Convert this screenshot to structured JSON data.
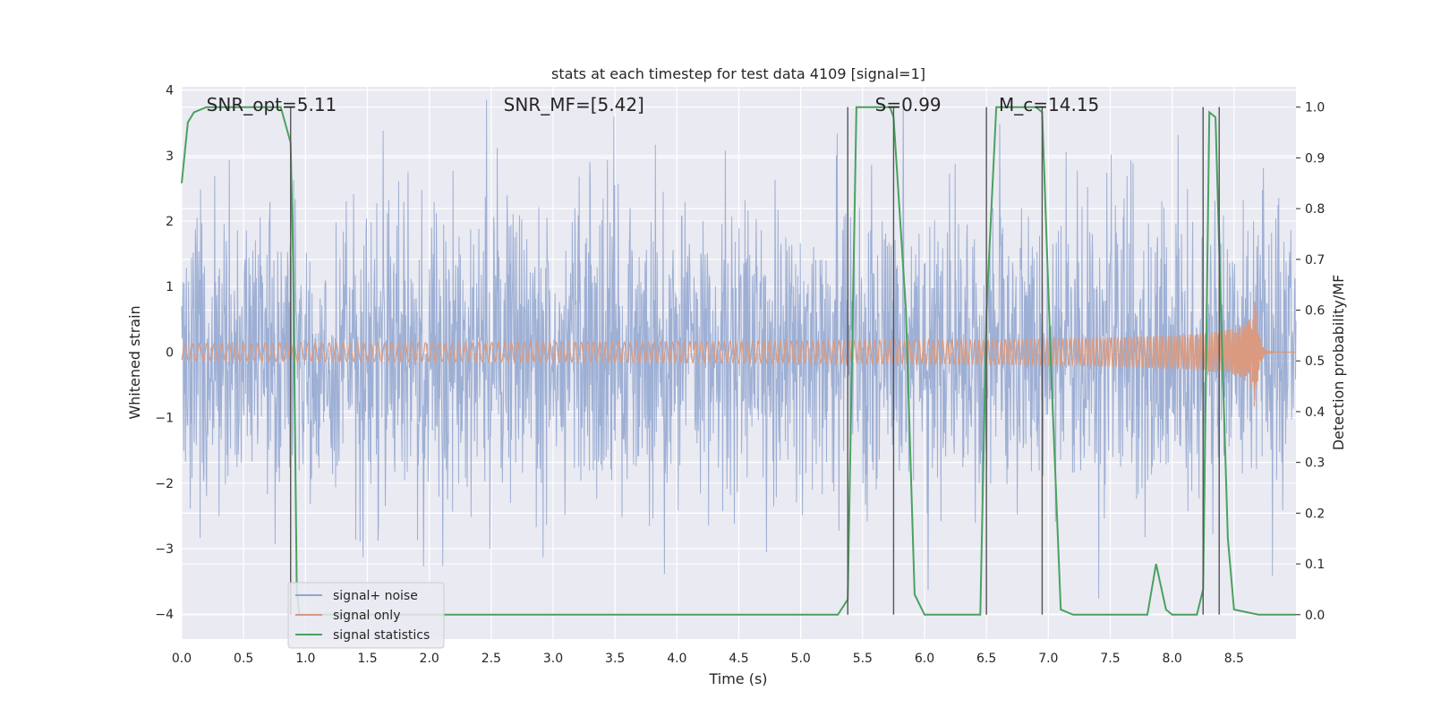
{
  "chart_data": {
    "type": "line",
    "title": "stats at each timestep for test data 4109 [signal=1]",
    "xlabel": "Time (s)",
    "ylabel_left": "Whitened strain",
    "ylabel_right": "Detection probability/MF",
    "xlim": [
      0.0,
      9.0
    ],
    "ylim_left": [
      -4.38,
      4.05
    ],
    "ylim_right": [
      -0.048,
      1.04
    ],
    "xticks": [
      "0.0",
      "0.5",
      "1.0",
      "1.5",
      "2.0",
      "2.5",
      "3.0",
      "3.5",
      "4.0",
      "4.5",
      "5.0",
      "5.5",
      "6.0",
      "6.5",
      "7.0",
      "7.5",
      "8.0",
      "8.5"
    ],
    "yticks_left": [
      "4",
      "3",
      "2",
      "1",
      "0",
      "−1",
      "−2",
      "−3",
      "−4"
    ],
    "yticks_right": [
      "1.0",
      "0.9",
      "0.8",
      "0.7",
      "0.6",
      "0.5",
      "0.4",
      "0.3",
      "0.2",
      "0.1",
      "0.0"
    ],
    "grid": true,
    "legend_position": "lower-left",
    "annotations": [
      {
        "text": "SNR_opt=5.11",
        "x": 0.2
      },
      {
        "text": "SNR_MF=[5.42]",
        "x": 2.6
      },
      {
        "text": "S=0.99",
        "x": 5.6
      },
      {
        "text": "M_c=14.15",
        "x": 6.6
      }
    ],
    "series": [
      {
        "name": "signal+ noise",
        "color": "#8fa5cf",
        "description_kind": "noise",
        "std": 1.15,
        "x_range": [
          0.0,
          9.0
        ]
      },
      {
        "name": "signal only",
        "color": "#d99a80",
        "description_kind": "chirp",
        "merger_time": 8.67,
        "peak_amplitude": 0.93,
        "x_range": [
          0.0,
          9.0
        ]
      },
      {
        "name": "signal statistics",
        "color": "#4aa15f",
        "x": [
          0.0,
          0.05,
          0.1,
          0.2,
          0.3,
          0.5,
          0.7,
          0.8,
          0.88,
          0.9,
          0.93,
          0.95,
          1.0,
          2.0,
          3.0,
          4.0,
          5.0,
          5.3,
          5.38,
          5.45,
          5.6,
          5.72,
          5.75,
          5.85,
          5.92,
          6.0,
          6.45,
          6.5,
          6.58,
          6.7,
          6.9,
          6.95,
          7.02,
          7.1,
          7.2,
          7.5,
          7.8,
          7.87,
          7.95,
          8.0,
          8.2,
          8.25,
          8.3,
          8.35,
          8.4,
          8.45,
          8.5,
          8.7,
          9.0
        ],
        "y": [
          0.85,
          0.97,
          0.99,
          1.0,
          1.0,
          1.0,
          1.0,
          1.0,
          0.93,
          0.7,
          0.05,
          0.0,
          0.0,
          0.0,
          0.0,
          0.0,
          0.0,
          0.0,
          0.03,
          1.0,
          1.0,
          1.0,
          0.98,
          0.6,
          0.04,
          0.0,
          0.0,
          0.6,
          1.0,
          1.0,
          1.0,
          0.99,
          0.5,
          0.01,
          0.0,
          0.0,
          0.0,
          0.1,
          0.01,
          0.0,
          0.0,
          0.05,
          0.99,
          0.98,
          0.55,
          0.15,
          0.01,
          0.0,
          0.0
        ]
      }
    ],
    "vlines": [
      0.88,
      5.38,
      5.75,
      6.5,
      6.95,
      8.25,
      8.38
    ]
  }
}
